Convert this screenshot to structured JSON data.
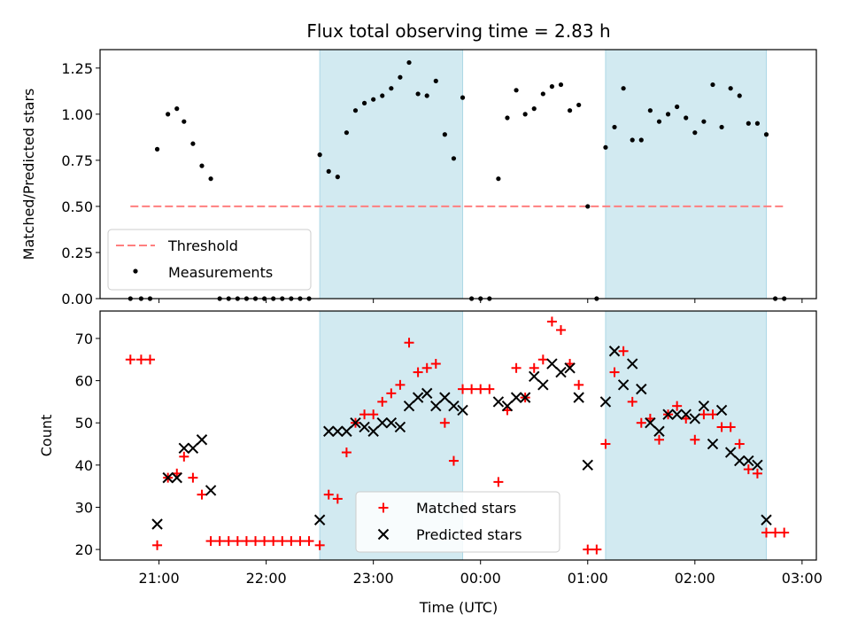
{
  "chart_data": [
    {
      "type": "scatter",
      "title": "Flux total observing time = 2.83 h",
      "xlabel": "",
      "ylabel": "Matched/Predicted stars",
      "ylim": [
        0,
        1.35
      ],
      "xlim": [
        "20:27",
        "03:08"
      ],
      "yticks": [
        "0.00",
        "0.25",
        "0.50",
        "0.75",
        "1.00",
        "1.25"
      ],
      "threshold": {
        "name": "Threshold",
        "value": 0.5,
        "x_range": [
          "20:44",
          "02:50"
        ],
        "color": "#ff7f7f",
        "style": "dashed"
      },
      "shaded_intervals": [
        [
          "22:30",
          "23:50"
        ],
        [
          "01:10",
          "02:40"
        ]
      ],
      "shade_color": "#add8e6",
      "legend": {
        "position": "lower-left",
        "entries": [
          "Threshold",
          "Measurements"
        ]
      },
      "series": [
        {
          "name": "Measurements",
          "color": "#000000",
          "marker": "dot",
          "points": [
            [
              "20:44",
              0
            ],
            [
              "20:50",
              0
            ],
            [
              "20:55",
              0
            ],
            [
              "20:59",
              0.81
            ],
            [
              "21:05",
              1.0
            ],
            [
              "21:10",
              1.03
            ],
            [
              "21:14",
              0.96
            ],
            [
              "21:19",
              0.84
            ],
            [
              "21:24",
              0.72
            ],
            [
              "21:29",
              0.65
            ],
            [
              "21:34",
              0
            ],
            [
              "21:39",
              0
            ],
            [
              "21:44",
              0
            ],
            [
              "21:49",
              0
            ],
            [
              "21:54",
              0
            ],
            [
              "21:59",
              0
            ],
            [
              "22:04",
              0
            ],
            [
              "22:09",
              0
            ],
            [
              "22:14",
              0
            ],
            [
              "22:19",
              0
            ],
            [
              "22:24",
              0
            ],
            [
              "22:30",
              0.78
            ],
            [
              "22:35",
              0.69
            ],
            [
              "22:40",
              0.66
            ],
            [
              "22:45",
              0.9
            ],
            [
              "22:50",
              1.02
            ],
            [
              "22:55",
              1.06
            ],
            [
              "23:00",
              1.08
            ],
            [
              "23:05",
              1.1
            ],
            [
              "23:10",
              1.14
            ],
            [
              "23:15",
              1.2
            ],
            [
              "23:20",
              1.28
            ],
            [
              "23:25",
              1.11
            ],
            [
              "23:30",
              1.1
            ],
            [
              "23:35",
              1.18
            ],
            [
              "23:40",
              0.89
            ],
            [
              "23:45",
              0.76
            ],
            [
              "23:50",
              1.09
            ],
            [
              "23:55",
              0
            ],
            [
              "00:00",
              0
            ],
            [
              "00:05",
              0
            ],
            [
              "00:10",
              0.65
            ],
            [
              "00:15",
              0.98
            ],
            [
              "00:20",
              1.13
            ],
            [
              "00:25",
              1.0
            ],
            [
              "00:30",
              1.03
            ],
            [
              "00:35",
              1.11
            ],
            [
              "00:40",
              1.15
            ],
            [
              "00:45",
              1.16
            ],
            [
              "00:50",
              1.02
            ],
            [
              "00:55",
              1.05
            ],
            [
              "01:00",
              0.5
            ],
            [
              "01:05",
              0
            ],
            [
              "01:10",
              0.82
            ],
            [
              "01:15",
              0.93
            ],
            [
              "01:20",
              1.14
            ],
            [
              "01:25",
              0.86
            ],
            [
              "01:30",
              0.86
            ],
            [
              "01:35",
              1.02
            ],
            [
              "01:40",
              0.96
            ],
            [
              "01:45",
              1.0
            ],
            [
              "01:50",
              1.04
            ],
            [
              "01:55",
              0.98
            ],
            [
              "02:00",
              0.9
            ],
            [
              "02:05",
              0.96
            ],
            [
              "02:10",
              1.16
            ],
            [
              "02:15",
              0.93
            ],
            [
              "02:20",
              1.14
            ],
            [
              "02:25",
              1.1
            ],
            [
              "02:30",
              0.95
            ],
            [
              "02:35",
              0.95
            ],
            [
              "02:40",
              0.89
            ],
            [
              "02:45",
              0
            ],
            [
              "02:50",
              0
            ]
          ]
        }
      ]
    },
    {
      "type": "scatter",
      "title": "",
      "xlabel": "Time (UTC)",
      "ylabel": "Count",
      "ylim": [
        17.5,
        76.5
      ],
      "xlim": [
        "20:27",
        "03:08"
      ],
      "xticks": [
        "21:00",
        "22:00",
        "23:00",
        "00:00",
        "01:00",
        "02:00",
        "03:00"
      ],
      "yticks": [
        "20",
        "30",
        "40",
        "50",
        "60",
        "70"
      ],
      "shaded_intervals": [
        [
          "22:30",
          "23:50"
        ],
        [
          "01:10",
          "02:40"
        ]
      ],
      "shade_color": "#add8e6",
      "legend": {
        "position": "lower-center",
        "entries": [
          "Matched stars",
          "Predicted stars"
        ]
      },
      "series": [
        {
          "name": "Matched stars",
          "color": "#ff0000",
          "marker": "plus",
          "points": [
            [
              "20:44",
              65
            ],
            [
              "20:50",
              65
            ],
            [
              "20:55",
              65
            ],
            [
              "20:59",
              21
            ],
            [
              "21:05",
              37
            ],
            [
              "21:10",
              38
            ],
            [
              "21:14",
              42
            ],
            [
              "21:19",
              37
            ],
            [
              "21:24",
              33
            ],
            [
              "21:29",
              22
            ],
            [
              "21:34",
              22
            ],
            [
              "21:39",
              22
            ],
            [
              "21:44",
              22
            ],
            [
              "21:49",
              22
            ],
            [
              "21:54",
              22
            ],
            [
              "21:59",
              22
            ],
            [
              "22:04",
              22
            ],
            [
              "22:09",
              22
            ],
            [
              "22:14",
              22
            ],
            [
              "22:19",
              22
            ],
            [
              "22:24",
              22
            ],
            [
              "22:30",
              21
            ],
            [
              "22:35",
              33
            ],
            [
              "22:40",
              32
            ],
            [
              "22:45",
              43
            ],
            [
              "22:50",
              50
            ],
            [
              "22:55",
              52
            ],
            [
              "23:00",
              52
            ],
            [
              "23:05",
              55
            ],
            [
              "23:10",
              57
            ],
            [
              "23:15",
              59
            ],
            [
              "23:20",
              69
            ],
            [
              "23:25",
              62
            ],
            [
              "23:30",
              63
            ],
            [
              "23:35",
              64
            ],
            [
              "23:40",
              50
            ],
            [
              "23:45",
              41
            ],
            [
              "23:50",
              58
            ],
            [
              "23:55",
              58
            ],
            [
              "00:00",
              58
            ],
            [
              "00:05",
              58
            ],
            [
              "00:10",
              36
            ],
            [
              "00:15",
              53
            ],
            [
              "00:20",
              63
            ],
            [
              "00:25",
              56
            ],
            [
              "00:30",
              63
            ],
            [
              "00:35",
              65
            ],
            [
              "00:40",
              74
            ],
            [
              "00:45",
              72
            ],
            [
              "00:50",
              64
            ],
            [
              "00:55",
              59
            ],
            [
              "01:00",
              20
            ],
            [
              "01:05",
              20
            ],
            [
              "01:10",
              45
            ],
            [
              "01:15",
              62
            ],
            [
              "01:20",
              67
            ],
            [
              "01:25",
              55
            ],
            [
              "01:30",
              50
            ],
            [
              "01:35",
              51
            ],
            [
              "01:40",
              46
            ],
            [
              "01:45",
              52
            ],
            [
              "01:50",
              54
            ],
            [
              "01:55",
              51
            ],
            [
              "02:00",
              46
            ],
            [
              "02:05",
              52
            ],
            [
              "02:10",
              52
            ],
            [
              "02:15",
              49
            ],
            [
              "02:20",
              49
            ],
            [
              "02:25",
              45
            ],
            [
              "02:30",
              39
            ],
            [
              "02:35",
              38
            ],
            [
              "02:40",
              24
            ],
            [
              "02:45",
              24
            ],
            [
              "02:50",
              24
            ]
          ]
        },
        {
          "name": "Predicted stars",
          "color": "#000000",
          "marker": "x",
          "points": [
            [
              "20:59",
              26
            ],
            [
              "21:05",
              37
            ],
            [
              "21:10",
              37
            ],
            [
              "21:14",
              44
            ],
            [
              "21:19",
              44
            ],
            [
              "21:24",
              46
            ],
            [
              "21:29",
              34
            ],
            [
              "22:30",
              27
            ],
            [
              "22:35",
              48
            ],
            [
              "22:40",
              48
            ],
            [
              "22:45",
              48
            ],
            [
              "22:50",
              50
            ],
            [
              "22:55",
              49
            ],
            [
              "23:00",
              48
            ],
            [
              "23:05",
              50
            ],
            [
              "23:10",
              50
            ],
            [
              "23:15",
              49
            ],
            [
              "23:20",
              54
            ],
            [
              "23:25",
              56
            ],
            [
              "23:30",
              57
            ],
            [
              "23:35",
              54
            ],
            [
              "23:40",
              56
            ],
            [
              "23:45",
              54
            ],
            [
              "23:50",
              53
            ],
            [
              "00:10",
              55
            ],
            [
              "00:15",
              54
            ],
            [
              "00:20",
              56
            ],
            [
              "00:25",
              56
            ],
            [
              "00:30",
              61
            ],
            [
              "00:35",
              59
            ],
            [
              "00:40",
              64
            ],
            [
              "00:45",
              62
            ],
            [
              "00:50",
              63
            ],
            [
              "00:55",
              56
            ],
            [
              "01:00",
              40
            ],
            [
              "01:10",
              55
            ],
            [
              "01:15",
              67
            ],
            [
              "01:20",
              59
            ],
            [
              "01:25",
              64
            ],
            [
              "01:30",
              58
            ],
            [
              "01:35",
              50
            ],
            [
              "01:40",
              48
            ],
            [
              "01:45",
              52
            ],
            [
              "01:50",
              52
            ],
            [
              "01:55",
              52
            ],
            [
              "02:00",
              51
            ],
            [
              "02:05",
              54
            ],
            [
              "02:10",
              45
            ],
            [
              "02:15",
              53
            ],
            [
              "02:20",
              43
            ],
            [
              "02:25",
              41
            ],
            [
              "02:30",
              41
            ],
            [
              "02:35",
              40
            ],
            [
              "02:40",
              27
            ]
          ]
        }
      ]
    }
  ]
}
